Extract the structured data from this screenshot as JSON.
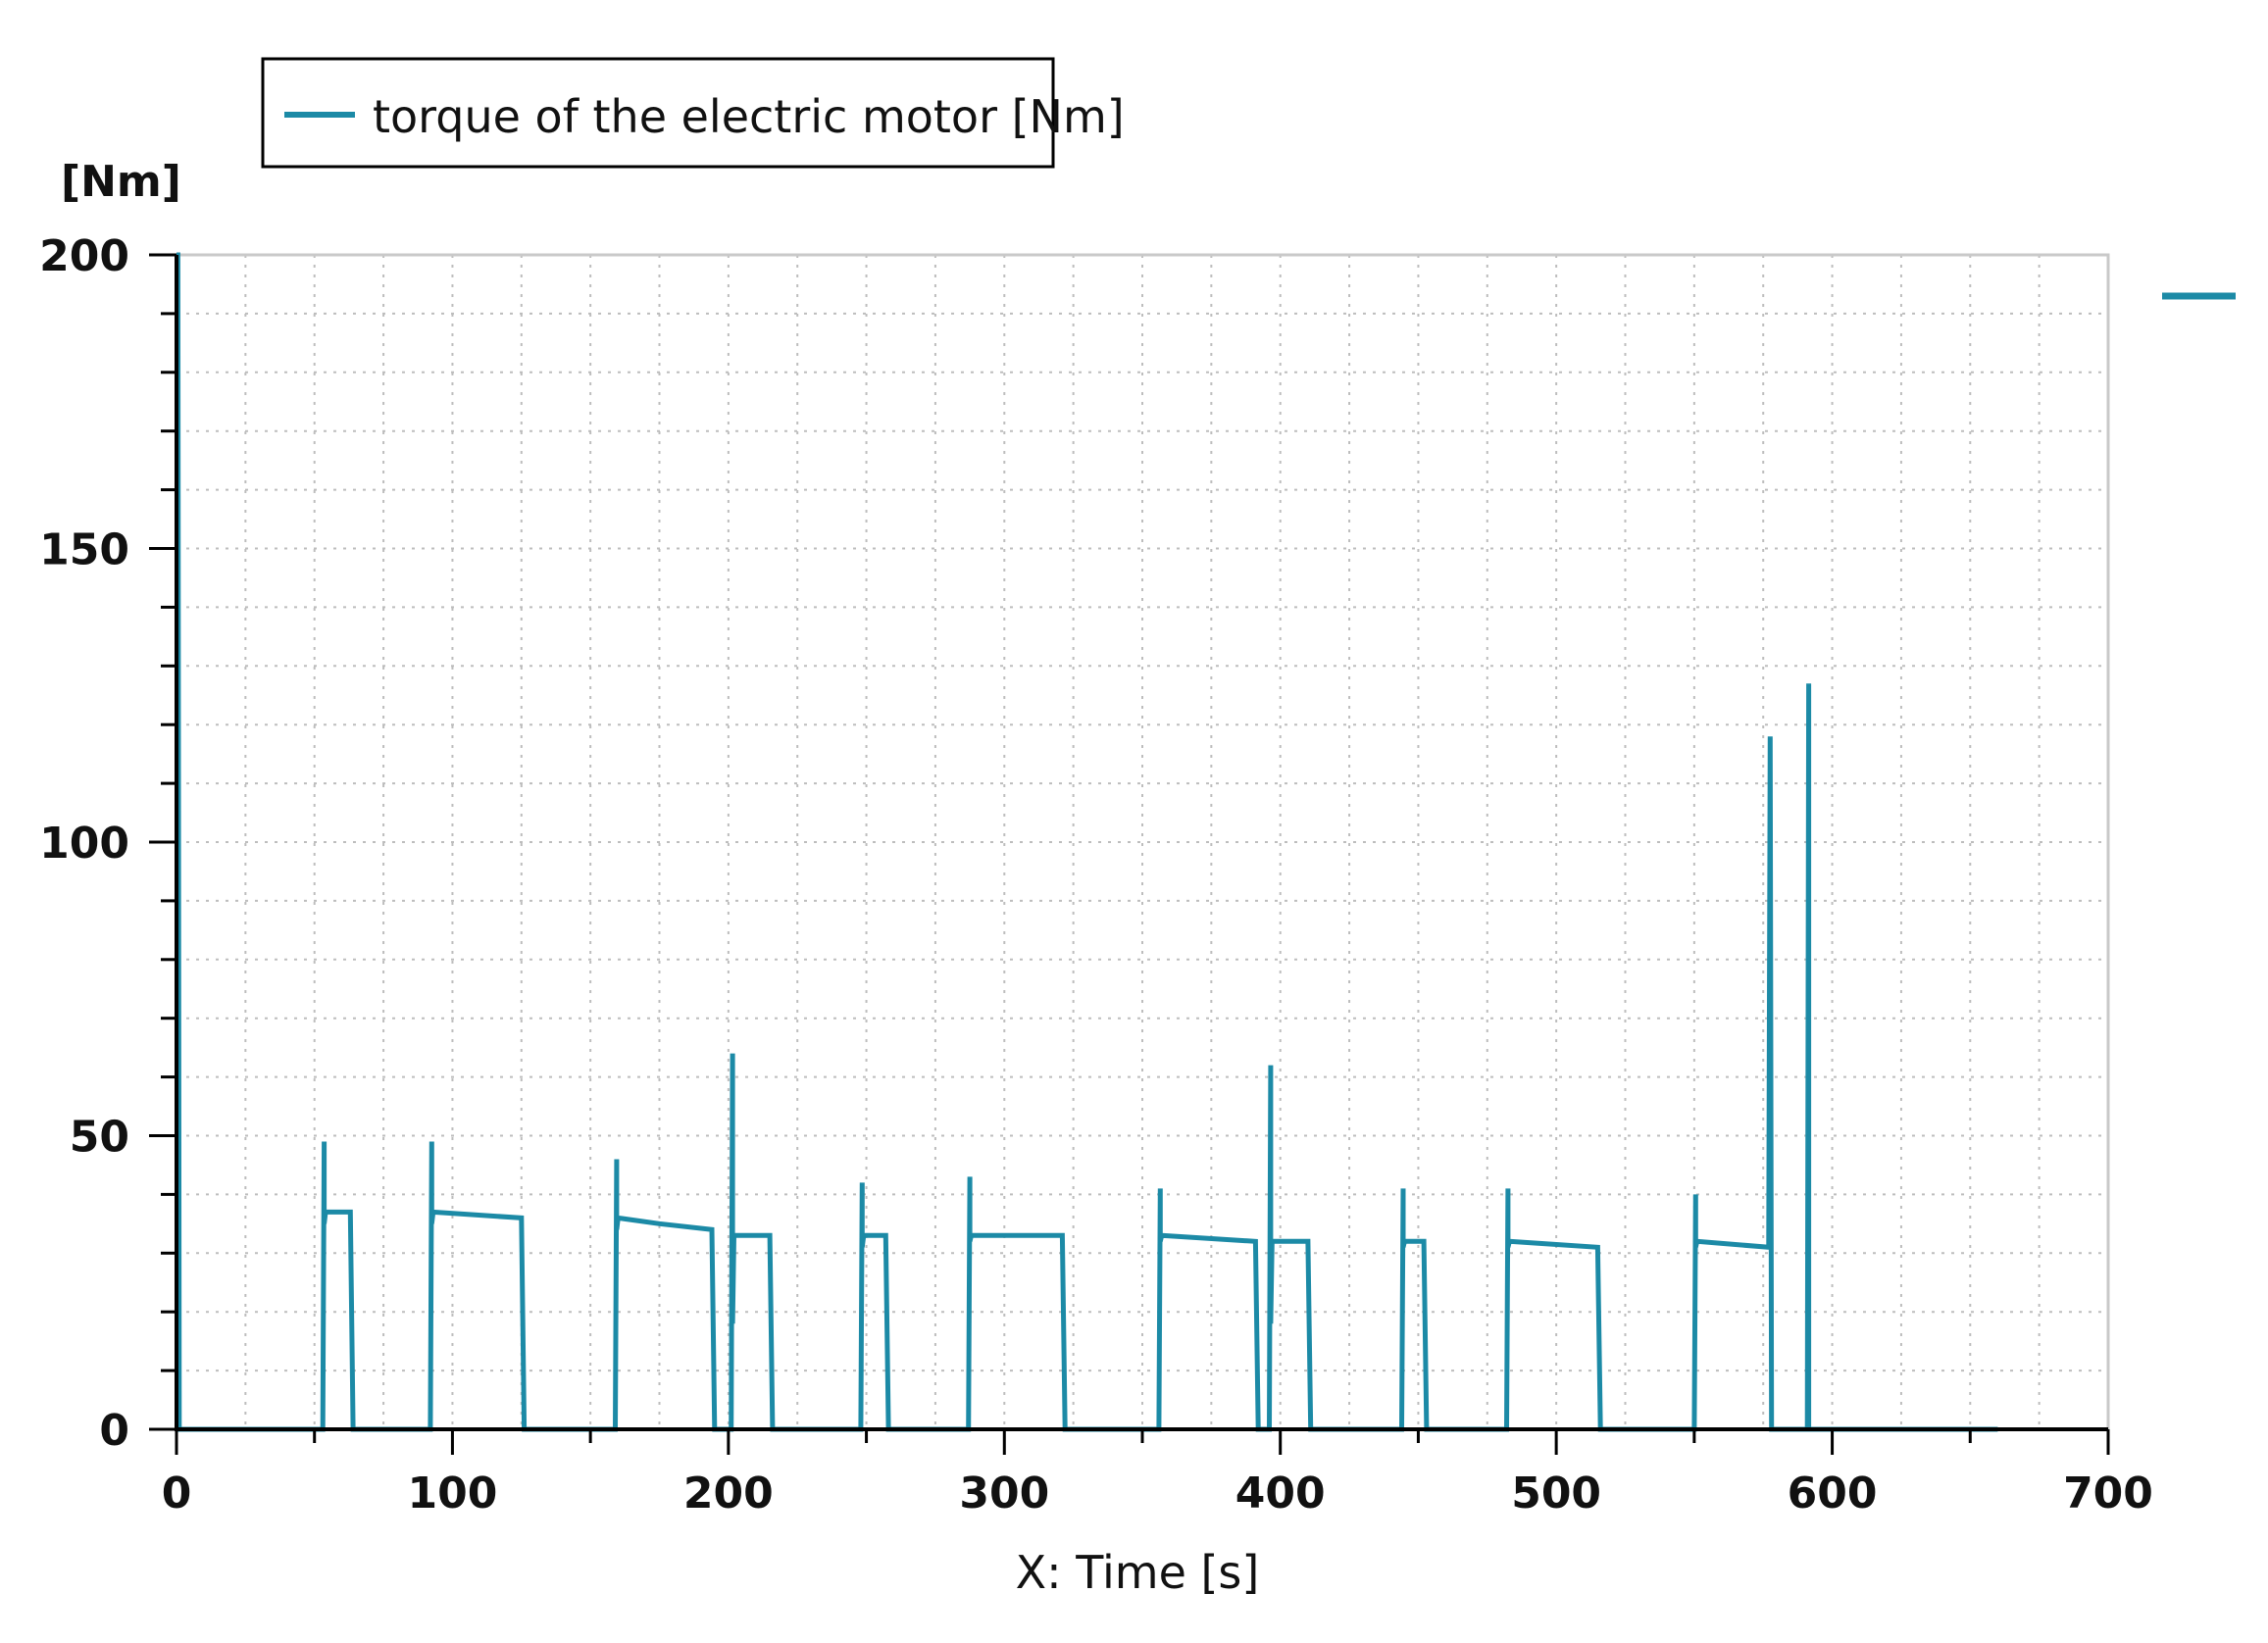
{
  "chart_data": {
    "type": "line",
    "title": "",
    "xlabel": "X: Time [s]",
    "ylabel": "[Nm]",
    "xlim": [
      0,
      700
    ],
    "ylim": [
      0,
      200
    ],
    "xticks": [
      0,
      100,
      200,
      300,
      400,
      500,
      600,
      700
    ],
    "yticks": [
      0,
      50,
      100,
      150,
      200
    ],
    "grid": true,
    "legend_position": "top-left",
    "colors": {
      "series": "#1c8aa6",
      "axis": "#000000",
      "grid": "#bdbdbd"
    },
    "series": [
      {
        "name": "torque of the electric motor [Nm]",
        "x": [
          0,
          0.5,
          1,
          53,
          53.5,
          53.5,
          54,
          54,
          63,
          64,
          92,
          92.5,
          92.5,
          93,
          93,
          125,
          126,
          159,
          159.5,
          159.5,
          160,
          160,
          175,
          194,
          195,
          201,
          201.5,
          201.5,
          202,
          202,
          202.5,
          202.5,
          203,
          215,
          216,
          248,
          248.5,
          248.5,
          249,
          249,
          257,
          258,
          287,
          287.5,
          287.5,
          288,
          288,
          321,
          322,
          356,
          356.5,
          356.5,
          357,
          357,
          391,
          392,
          396,
          396.5,
          396.5,
          397,
          397,
          397.5,
          397.5,
          398,
          410,
          411,
          444,
          444.5,
          444.5,
          445,
          445,
          452,
          453,
          482,
          482.5,
          482.5,
          483,
          483,
          515,
          516,
          550,
          550.5,
          550.5,
          551,
          551,
          577,
          577,
          577.5,
          577.5,
          578,
          578,
          591,
          591.5,
          591.5,
          592,
          592,
          660
        ],
        "values": [
          200,
          200,
          0,
          0,
          49,
          35,
          37,
          37,
          37,
          0,
          0,
          49,
          35,
          37,
          37,
          36,
          0,
          0,
          46,
          34,
          36,
          36,
          35,
          34,
          0,
          0,
          64,
          18,
          33,
          33,
          33,
          33,
          33,
          33,
          0,
          0,
          42,
          31,
          33,
          33,
          33,
          0,
          0,
          43,
          32,
          33,
          33,
          33,
          0,
          0,
          41,
          32,
          33,
          33,
          32,
          0,
          0,
          62,
          18,
          32,
          32,
          32,
          32,
          32,
          32,
          0,
          0,
          41,
          31,
          32,
          32,
          32,
          0,
          0,
          41,
          31,
          32,
          32,
          31,
          0,
          0,
          40,
          31,
          32,
          32,
          31,
          31,
          118,
          118,
          0,
          0,
          0,
          127,
          0,
          0,
          0,
          0
        ]
      }
    ]
  }
}
